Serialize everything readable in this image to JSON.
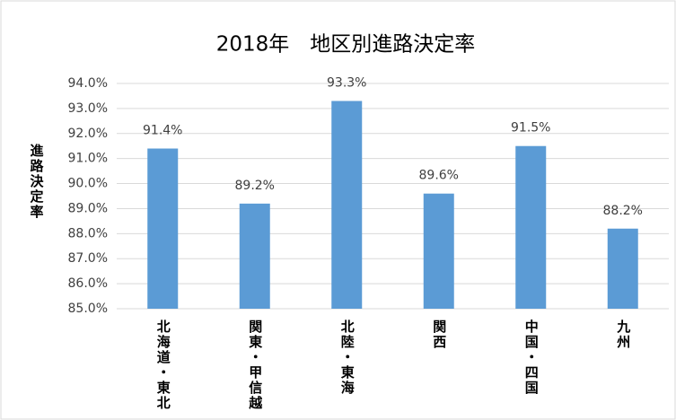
{
  "chart_data": {
    "type": "bar",
    "title": "2018年　地区別進路決定率",
    "y_label": "進路決定率",
    "categories": [
      "北海道・東北",
      "関東・甲信越",
      "北陸・東海",
      "関西",
      "中国・四国",
      "九州"
    ],
    "values": [
      91.4,
      89.2,
      93.3,
      89.6,
      91.5,
      88.2
    ],
    "value_labels": [
      "91.4%",
      "89.2%",
      "93.3%",
      "89.6%",
      "91.5%",
      "88.2%"
    ],
    "color": "#5b9bd5",
    "ylim": [
      85,
      94
    ],
    "yticks": [
      {
        "value": 85,
        "label": "85.0%"
      },
      {
        "value": 86,
        "label": "86.0%"
      },
      {
        "value": 87,
        "label": "87.0%"
      },
      {
        "value": 88,
        "label": "88.0%"
      },
      {
        "value": 89,
        "label": "89.0%"
      },
      {
        "value": 90,
        "label": "90.0%"
      },
      {
        "value": 91,
        "label": "91.0%"
      },
      {
        "value": 92,
        "label": "92.0%"
      },
      {
        "value": 93,
        "label": "93.0%"
      },
      {
        "value": 94,
        "label": "94.0%"
      }
    ],
    "grid": true
  }
}
